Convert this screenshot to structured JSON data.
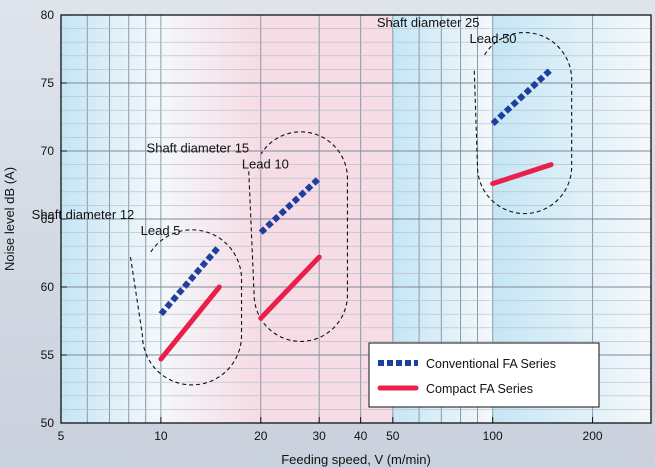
{
  "chart_data": {
    "type": "line",
    "xlabel": "Feeding speed, V (m/min)",
    "ylabel": "Noise level dB (A)",
    "xscale": "log",
    "xlim": [
      5,
      300
    ],
    "ylim": [
      50,
      80
    ],
    "x_ticks": [
      5,
      10,
      20,
      30,
      40,
      50,
      100,
      200
    ],
    "x_tick_labels": [
      "5",
      "10",
      "20",
      "30",
      "40",
      "50",
      "100",
      "200"
    ],
    "y_ticks": [
      50,
      55,
      60,
      65,
      70,
      75,
      80
    ],
    "y_tick_labels": [
      "50",
      "55",
      "60",
      "65",
      "70",
      "75",
      "80"
    ],
    "grid": true,
    "legend_position": "bottom-right",
    "series": [
      {
        "name": "Conventional FA Series",
        "style": "dotted",
        "color": "#1f3f9e",
        "segments": [
          {
            "x": [
              10,
              15
            ],
            "y": [
              58,
              63
            ]
          },
          {
            "x": [
              20,
              30
            ],
            "y": [
              64,
              68
            ]
          },
          {
            "x": [
              100,
              150
            ],
            "y": [
              72,
              76
            ]
          }
        ]
      },
      {
        "name": "Compact FA Series",
        "style": "solid",
        "color": "#e8204a",
        "segments": [
          {
            "x": [
              10,
              15
            ],
            "y": [
              54.7,
              60
            ]
          },
          {
            "x": [
              20,
              30
            ],
            "y": [
              57.7,
              62.2
            ]
          },
          {
            "x": [
              100,
              150
            ],
            "y": [
              67.6,
              69
            ]
          }
        ]
      }
    ],
    "annotations": [
      {
        "line1": "Shaft diameter 12",
        "line2": "Lead 5"
      },
      {
        "line1": "Shaft diameter 15",
        "line2": "Lead 10"
      },
      {
        "line1": "Shaft diameter 25",
        "line2": "Lead 50"
      }
    ]
  }
}
